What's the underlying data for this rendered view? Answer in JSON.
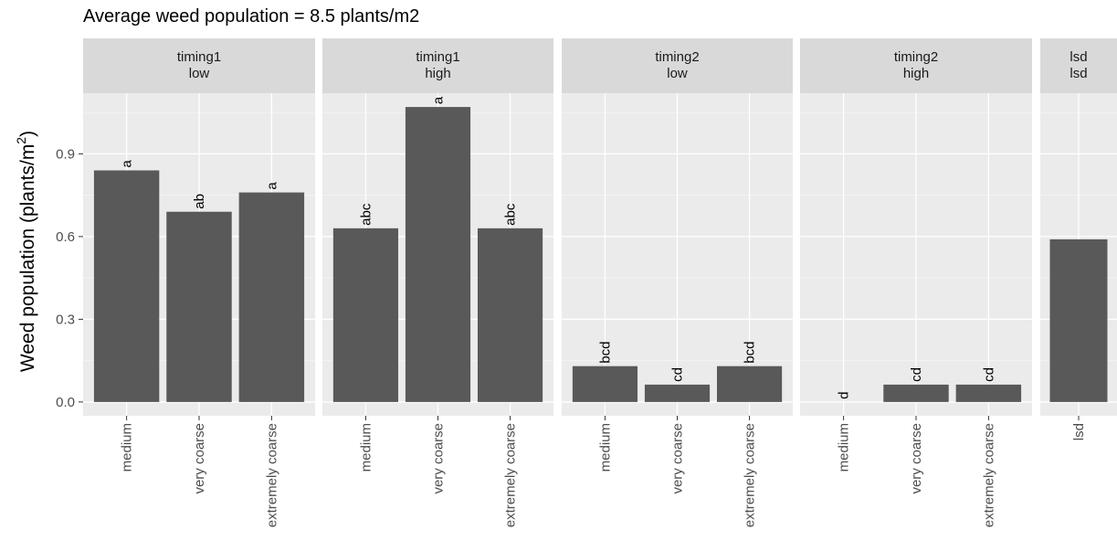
{
  "chart_data": {
    "type": "bar",
    "title": "Average weed population = 8.5 plants/m2",
    "ylabel": "Weed population (plants/m",
    "ylabel_sup": "2",
    "ylabel_close": ")",
    "xlabel": "",
    "ylim": [
      -0.05,
      1.12
    ],
    "yticks": [
      0.0,
      0.3,
      0.6,
      0.9
    ],
    "ytick_labels": [
      "0.0",
      "0.3",
      "0.6",
      "0.9"
    ],
    "grid": true,
    "legend": "none",
    "panels": [
      {
        "strip": [
          "timing1",
          "low"
        ],
        "categories": [
          "medium",
          "very coarse",
          "extremely coarse"
        ],
        "values": [
          0.84,
          0.69,
          0.76
        ],
        "labels": [
          "a",
          "ab",
          "a"
        ]
      },
      {
        "strip": [
          "timing1",
          "high"
        ],
        "categories": [
          "medium",
          "very coarse",
          "extremely coarse"
        ],
        "values": [
          0.63,
          1.07,
          0.63
        ],
        "labels": [
          "abc",
          "a",
          "abc"
        ]
      },
      {
        "strip": [
          "timing2",
          "low"
        ],
        "categories": [
          "medium",
          "very coarse",
          "extremely coarse"
        ],
        "values": [
          0.13,
          0.063,
          0.13
        ],
        "labels": [
          "bcd",
          "cd",
          "bcd"
        ]
      },
      {
        "strip": [
          "timing2",
          "high"
        ],
        "categories": [
          "medium",
          "very coarse",
          "extremely coarse"
        ],
        "values": [
          0.0,
          0.063,
          0.063
        ],
        "labels": [
          "d",
          "cd",
          "cd"
        ]
      },
      {
        "strip": [
          "lsd",
          "lsd"
        ],
        "categories": [
          "lsd"
        ],
        "values": [
          0.59
        ],
        "labels": [
          ""
        ]
      }
    ]
  },
  "colors": {
    "bar": "#595959",
    "panel_bg": "#ebebeb",
    "strip_bg": "#d9d9d9",
    "grid_major": "#ffffff",
    "grid_minor": "#f4f4f4",
    "tick_text": "#4d4d4d"
  }
}
